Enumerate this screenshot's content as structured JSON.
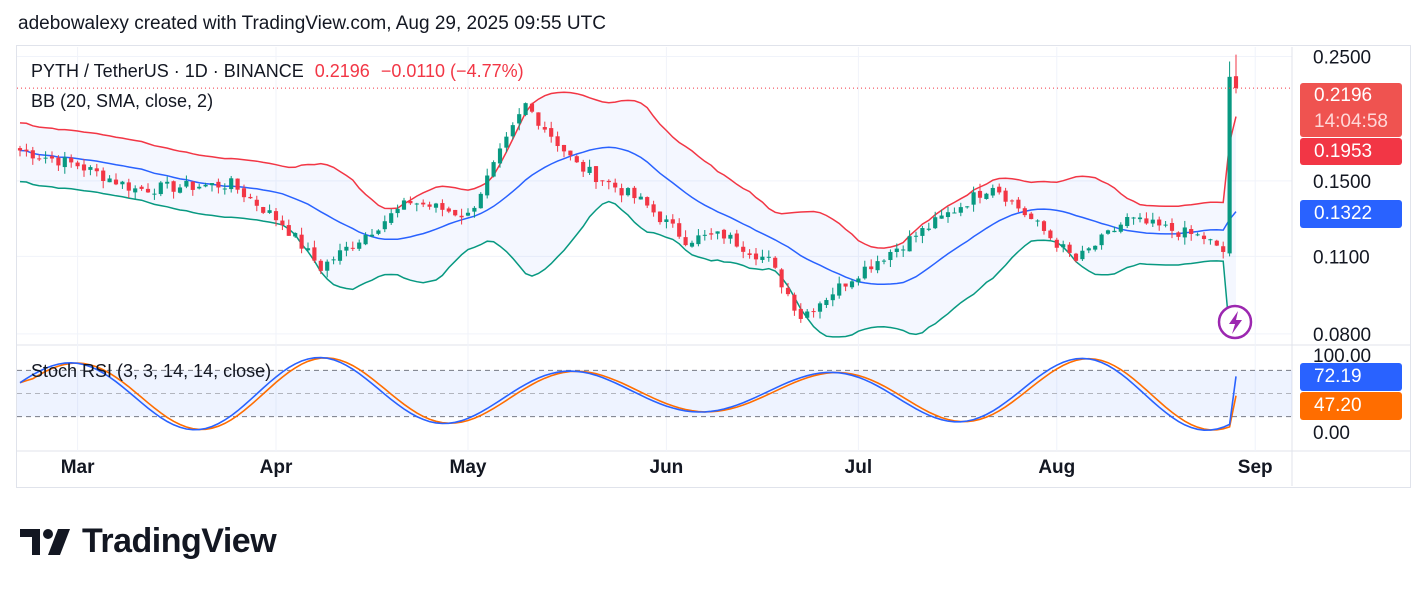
{
  "header": {
    "credit": "adebowalexy created with TradingView.com, Aug 29, 2025 09:55 UTC"
  },
  "legend": {
    "symbol": "PYTH / TetherUS · 1D · BINANCE",
    "price": "0.2196",
    "change": "−0.0110 (−4.77%)",
    "bb": "BB (20, SMA, close, 2)",
    "stoch": "Stoch RSI (3, 3, 14, 14, close)"
  },
  "price_axis": {
    "ticks": [
      "0.2500",
      "0.1500",
      "0.1100",
      "0.0800"
    ],
    "last_price": "0.2196",
    "countdown": "14:04:58",
    "bb_upper": "0.1953",
    "bb_basis": "0.1322"
  },
  "stoch_axis": {
    "ticks": [
      "100.00",
      "0.00"
    ],
    "k": "72.19",
    "d": "47.20"
  },
  "time_axis": {
    "labels": [
      "Mar",
      "Apr",
      "May",
      "Jun",
      "Jul",
      "Aug",
      "Sep"
    ]
  },
  "colors": {
    "up": "#089981",
    "down": "#f23645",
    "bb_upper": "#f23645",
    "bb_basis": "#2962ff",
    "bb_lower": "#089981",
    "k": "#2962ff",
    "d": "#ff6d00"
  },
  "brand": {
    "name": "TradingView"
  },
  "chart_data": [
    {
      "type": "candlestick",
      "title": "PYTH / TetherUS · 1D · BINANCE",
      "x_range": [
        "2025-02-20",
        "2025-08-29"
      ],
      "ylim": [
        0.078,
        0.26
      ],
      "y_scale": "log",
      "last_close": 0.2196,
      "anchors": [
        {
          "date": "2025-02-20",
          "close": 0.17
        },
        {
          "date": "2025-03-01",
          "close": 0.16
        },
        {
          "date": "2025-03-10",
          "close": 0.145
        },
        {
          "date": "2025-03-25",
          "close": 0.148
        },
        {
          "date": "2025-04-02",
          "close": 0.126
        },
        {
          "date": "2025-04-08",
          "close": 0.105
        },
        {
          "date": "2025-04-22",
          "close": 0.138
        },
        {
          "date": "2025-05-01",
          "close": 0.13
        },
        {
          "date": "2025-05-10",
          "close": 0.205
        },
        {
          "date": "2025-05-18",
          "close": 0.16
        },
        {
          "date": "2025-05-28",
          "close": 0.138
        },
        {
          "date": "2025-06-04",
          "close": 0.118
        },
        {
          "date": "2025-06-10",
          "close": 0.12
        },
        {
          "date": "2025-06-17",
          "close": 0.108
        },
        {
          "date": "2025-06-22",
          "close": 0.086
        },
        {
          "date": "2025-07-01",
          "close": 0.103
        },
        {
          "date": "2025-07-10",
          "close": 0.12
        },
        {
          "date": "2025-07-22",
          "close": 0.148
        },
        {
          "date": "2025-08-04",
          "close": 0.108
        },
        {
          "date": "2025-08-12",
          "close": 0.128
        },
        {
          "date": "2025-08-25",
          "close": 0.118
        },
        {
          "date": "2025-08-27",
          "close": 0.112
        },
        {
          "date": "2025-08-28",
          "close": 0.23
        },
        {
          "date": "2025-08-29",
          "close": 0.2196
        }
      ],
      "bollinger": {
        "period": 20,
        "stddev": 2,
        "last_upper": 0.1953,
        "last_basis": 0.1322
      }
    },
    {
      "type": "line",
      "title": "Stoch RSI (3, 3, 14, 14, close)",
      "ylim": [
        0,
        100
      ],
      "bands": [
        20,
        80
      ],
      "series": [
        {
          "name": "K",
          "last": 72.19
        },
        {
          "name": "D",
          "last": 47.2
        }
      ]
    }
  ]
}
